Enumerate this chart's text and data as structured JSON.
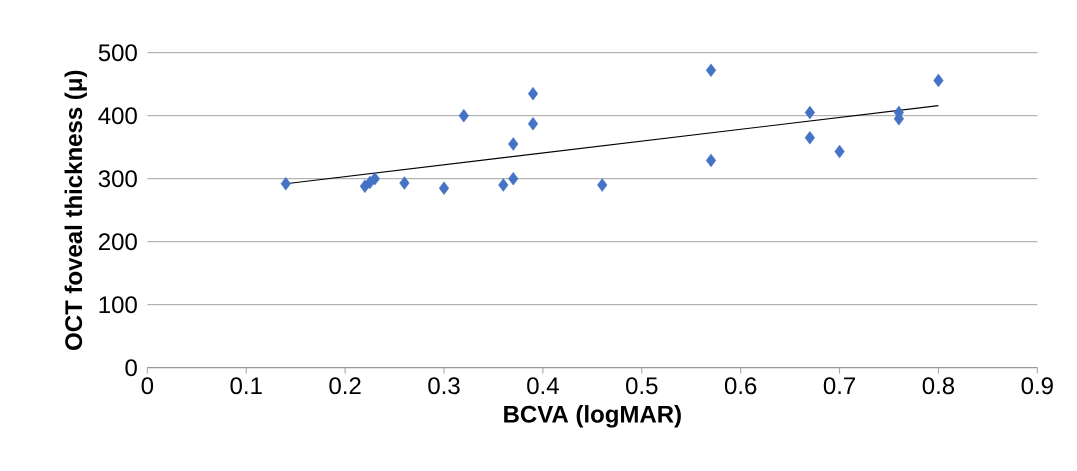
{
  "chart_data": {
    "type": "scatter",
    "xlabel": "BCVA (logMAR)",
    "ylabel": "OCT foveal thickness (μ)",
    "xlim": [
      0,
      0.9
    ],
    "xticks": [
      0,
      0.1,
      0.2,
      0.3,
      0.4,
      0.5,
      0.6,
      0.7,
      0.8,
      0.9
    ],
    "ylim": [
      0,
      500
    ],
    "yticks": [
      0,
      100,
      200,
      300,
      400,
      500
    ],
    "grid": "y",
    "series": [
      {
        "color": "#4472c4",
        "marker": "diamond",
        "x": [
          0.14,
          0.22,
          0.225,
          0.23,
          0.26,
          0.3,
          0.32,
          0.36,
          0.37,
          0.37,
          0.39,
          0.39,
          0.46,
          0.57,
          0.57,
          0.67,
          0.67,
          0.7,
          0.76,
          0.76,
          0.8
        ],
        "values": [
          292,
          288,
          294,
          300,
          293,
          285,
          400,
          290,
          300,
          355,
          387,
          435,
          290,
          472,
          329,
          405,
          365,
          343,
          405,
          395,
          456
        ]
      },
      {
        "type": "line",
        "color": "#000000",
        "marker": "none",
        "x": [
          0.14,
          0.8
        ],
        "values": [
          292,
          416
        ]
      }
    ]
  }
}
